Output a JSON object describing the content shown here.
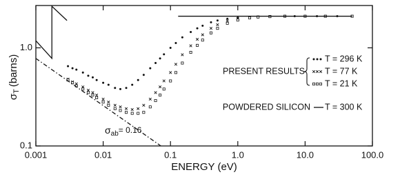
{
  "chart_data": {
    "type": "scatter",
    "xlabel": "ENERGY (eV)",
    "ylabel_symbol": "σ",
    "ylabel_subscript": "T",
    "ylabel_unit": "(barns)",
    "xscale": "log",
    "yscale": "log",
    "xlim": [
      0.001,
      100
    ],
    "ylim": [
      0.1,
      2.7
    ],
    "xticks": [
      0.001,
      0.01,
      0.1,
      {
        "value": 1,
        "label": "1.0"
      },
      {
        "value": 10,
        "label": "10.0"
      },
      {
        "value": 100,
        "label": "100.0"
      }
    ],
    "yticks": [
      0.1,
      {
        "value": 1,
        "label": "1.0"
      }
    ],
    "legend_groups": [
      "PRESENT RESULTS",
      "POWDERED SILICON"
    ],
    "annotation": {
      "symbol": "σ",
      "subscript": "ab",
      "text": "= 0.16"
    },
    "series": [
      {
        "name": "T = 296 K",
        "color": "#111111",
        "marker": "dot",
        "x": [
          0.003,
          0.0035,
          0.004,
          0.005,
          0.006,
          0.007,
          0.008,
          0.01,
          0.012,
          0.015,
          0.018,
          0.022,
          0.027,
          0.033,
          0.04,
          0.05,
          0.06,
          0.07,
          0.08,
          0.1,
          0.12,
          0.15,
          0.2,
          0.25,
          0.3,
          0.4,
          0.5,
          0.7,
          1.0,
          1.5,
          2,
          3,
          5,
          7,
          10,
          15,
          20,
          30,
          50
        ],
        "values": [
          0.65,
          0.62,
          0.6,
          0.56,
          0.52,
          0.5,
          0.47,
          0.44,
          0.42,
          0.39,
          0.38,
          0.39,
          0.42,
          0.47,
          0.53,
          0.62,
          0.7,
          0.78,
          0.86,
          1.0,
          1.12,
          1.28,
          1.45,
          1.58,
          1.68,
          1.82,
          1.9,
          1.98,
          2.03,
          2.07,
          2.08,
          2.09,
          2.1,
          2.1,
          2.1,
          2.1,
          2.1,
          2.1,
          2.1
        ]
      },
      {
        "name": "T = 77 K",
        "color": "#111111",
        "marker": "cross",
        "x": [
          0.003,
          0.0035,
          0.004,
          0.005,
          0.006,
          0.007,
          0.008,
          0.01,
          0.012,
          0.015,
          0.018,
          0.022,
          0.027,
          0.033,
          0.04,
          0.05,
          0.06,
          0.07,
          0.08,
          0.1,
          0.12,
          0.15,
          0.2,
          0.25,
          0.3,
          0.4,
          0.5,
          0.7,
          1.0,
          1.5,
          2,
          3,
          5,
          10,
          20,
          50
        ],
        "values": [
          0.48,
          0.45,
          0.43,
          0.4,
          0.37,
          0.35,
          0.33,
          0.3,
          0.28,
          0.26,
          0.25,
          0.24,
          0.235,
          0.24,
          0.26,
          0.3,
          0.35,
          0.4,
          0.46,
          0.56,
          0.68,
          0.85,
          1.05,
          1.22,
          1.36,
          1.58,
          1.72,
          1.88,
          1.98,
          2.05,
          2.07,
          2.09,
          2.1,
          2.1,
          2.1,
          2.1
        ]
      },
      {
        "name": "T = 21 K",
        "color": "#111111",
        "marker": "square",
        "x": [
          0.003,
          0.0035,
          0.004,
          0.005,
          0.006,
          0.007,
          0.008,
          0.01,
          0.012,
          0.015,
          0.018,
          0.022,
          0.027,
          0.033,
          0.04,
          0.05,
          0.06,
          0.07,
          0.08,
          0.1,
          0.12,
          0.15,
          0.2,
          0.25,
          0.3,
          0.4,
          0.5,
          0.7,
          1.0,
          1.5,
          2,
          3,
          5,
          10,
          20,
          50
        ],
        "values": [
          0.47,
          0.44,
          0.41,
          0.38,
          0.35,
          0.33,
          0.31,
          0.28,
          0.26,
          0.24,
          0.23,
          0.22,
          0.215,
          0.215,
          0.22,
          0.25,
          0.29,
          0.33,
          0.38,
          0.46,
          0.56,
          0.7,
          0.9,
          1.06,
          1.2,
          1.42,
          1.58,
          1.78,
          1.92,
          2.02,
          2.06,
          2.08,
          2.1,
          2.1,
          2.1,
          2.1
        ]
      },
      {
        "name": "T = 300 K",
        "color": "#111111",
        "marker": "line",
        "x": [
          0.13,
          50
        ],
        "values": [
          2.1,
          2.1
        ]
      },
      {
        "color": "#111111",
        "marker": "line",
        "x": [
          0.001,
          0.00173,
          0.00173,
          0.0029
        ],
        "values": [
          1.18,
          0.78,
          2.65,
          1.9
        ]
      },
      {
        "color": "#111111",
        "marker": "dashdot",
        "x": [
          0.001,
          0.072
        ],
        "values": [
          0.78,
          0.1
        ]
      }
    ]
  }
}
